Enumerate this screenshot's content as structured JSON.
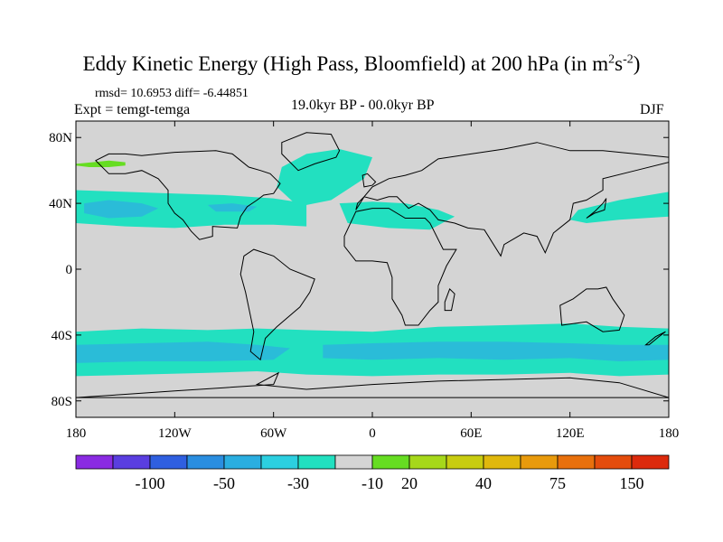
{
  "title": {
    "main": "Eddy Kinetic Energy (High Pass, Bloomfield) at 200 hPa (in m",
    "sup1": "2",
    "mid": "s",
    "sup2": "-2",
    "close": ")"
  },
  "stats": "rmsd= 10.6953 diff= -6.44851",
  "experiment": "Expt = temgt-temga",
  "period": "19.0kyr BP - 00.0kyr BP",
  "season": "DJF",
  "map": {
    "projection": "cylindrical equidistant",
    "lon_range": [
      -180,
      180
    ],
    "lat_range": [
      -90,
      90
    ],
    "background_color": "#d4d4d4",
    "lat_labels": [
      {
        "lat": 80,
        "label": "80N"
      },
      {
        "lat": 40,
        "label": "40N"
      },
      {
        "lat": 0,
        "label": "0"
      },
      {
        "lat": -40,
        "label": "40S"
      },
      {
        "lat": -80,
        "label": "80S"
      }
    ],
    "lon_labels": [
      {
        "lon": -180,
        "label": "180"
      },
      {
        "lon": -120,
        "label": "120W"
      },
      {
        "lon": -60,
        "label": "60W"
      },
      {
        "lon": 0,
        "label": "0"
      },
      {
        "lon": 60,
        "label": "60E"
      },
      {
        "lon": 120,
        "label": "120E"
      },
      {
        "lon": 180,
        "label": "180"
      }
    ],
    "anomaly_regions": [
      {
        "name": "nh-pacific-atlantic-band",
        "color": "#22e0c0",
        "lons": [
          -180,
          -150,
          -120,
          -90,
          -60,
          -40,
          -40,
          -60,
          -90,
          -120,
          -150,
          -180
        ],
        "lats": [
          48,
          47,
          46,
          45,
          43,
          40,
          26,
          27,
          27,
          25,
          26,
          28
        ]
      },
      {
        "name": "nh-pacific-core",
        "color": "#2abcd8",
        "lons": [
          -175,
          -160,
          -140,
          -130,
          -140,
          -160,
          -175
        ],
        "lats": [
          40,
          42,
          40,
          37,
          32,
          31,
          34
        ]
      },
      {
        "name": "nh-atlantic-core",
        "color": "#2abcd8",
        "lons": [
          -100,
          -85,
          -70,
          -75,
          -95
        ],
        "lats": [
          39,
          40,
          38,
          35,
          35
        ]
      },
      {
        "name": "north-atlantic-plume",
        "color": "#22e0c0",
        "lons": [
          -55,
          -40,
          -20,
          0,
          -5,
          -25,
          -45,
          -58
        ],
        "lats": [
          62,
          70,
          73,
          68,
          55,
          42,
          38,
          50
        ]
      },
      {
        "name": "africa-europe-band",
        "color": "#22e0c0",
        "lons": [
          -20,
          0,
          20,
          40,
          50,
          35,
          10,
          -15
        ],
        "lats": [
          40,
          41,
          40,
          36,
          32,
          24,
          25,
          28
        ]
      },
      {
        "name": "nw-pacific-band",
        "color": "#22e0c0",
        "lons": [
          125,
          150,
          180,
          180,
          150,
          130,
          120
        ],
        "lats": [
          36,
          42,
          47,
          32,
          30,
          28,
          30
        ]
      },
      {
        "name": "sh-ring",
        "color": "#22e0c0",
        "lons": [
          -180,
          -140,
          -100,
          -70,
          -40,
          0,
          40,
          80,
          120,
          150,
          180,
          180,
          150,
          120,
          80,
          40,
          0,
          -40,
          -70,
          -100,
          -140,
          -180
        ],
        "lats": [
          -38,
          -36,
          -37,
          -36,
          -37,
          -38,
          -35,
          -34,
          -33,
          -35,
          -36,
          -64,
          -65,
          -63,
          -64,
          -64,
          -65,
          -64,
          -62,
          -63,
          -64,
          -65
        ]
      },
      {
        "name": "sh-core-west",
        "color": "#2abcd8",
        "lons": [
          -180,
          -140,
          -100,
          -70,
          -50,
          -60,
          -100,
          -140,
          -180
        ],
        "lats": [
          -46,
          -45,
          -44,
          -46,
          -48,
          -55,
          -56,
          -56,
          -57
        ]
      },
      {
        "name": "sh-core-east",
        "color": "#2abcd8",
        "lons": [
          -30,
          0,
          40,
          80,
          120,
          150,
          180,
          180,
          150,
          120,
          80,
          40,
          0,
          -30
        ],
        "lats": [
          -46,
          -45,
          -44,
          -44,
          -45,
          -46,
          -46,
          -55,
          -56,
          -54,
          -55,
          -54,
          -55,
          -54
        ]
      },
      {
        "name": "alaska-positive",
        "color": "#66dd22",
        "lons": [
          -180,
          -170,
          -160,
          -150,
          -150,
          -160,
          -172,
          -180
        ],
        "lats": [
          64,
          65,
          66,
          65,
          63,
          62,
          62,
          63
        ]
      }
    ],
    "coastlines": [
      {
        "name": "north-america",
        "lons": [
          -168,
          -160,
          -150,
          -140,
          -130,
          -120,
          -95,
          -85,
          -80,
          -75,
          -68,
          -62,
          -56,
          -60,
          -66,
          -70,
          -76,
          -80,
          -82,
          -97,
          -97,
          -105,
          -110,
          -115,
          -120,
          -124,
          -124,
          -130,
          -140,
          -150,
          -160,
          -168
        ],
        "lats": [
          66,
          70,
          70,
          69,
          70,
          71,
          72,
          70,
          66,
          62,
          60,
          58,
          52,
          46,
          45,
          42,
          38,
          32,
          25,
          26,
          20,
          18,
          23,
          30,
          34,
          40,
          48,
          55,
          60,
          58,
          58,
          66
        ]
      },
      {
        "name": "greenland",
        "lons": [
          -55,
          -40,
          -25,
          -20,
          -22,
          -35,
          -45,
          -55
        ],
        "lats": [
          77,
          83,
          82,
          72,
          68,
          64,
          60,
          70
        ]
      },
      {
        "name": "south-america",
        "lons": [
          -78,
          -72,
          -60,
          -50,
          -35,
          -38,
          -44,
          -58,
          -65,
          -68,
          -74,
          -72,
          -77,
          -80,
          -78
        ],
        "lats": [
          8,
          12,
          8,
          0,
          -6,
          -14,
          -23,
          -35,
          -42,
          -55,
          -50,
          -38,
          -14,
          -3,
          8
        ]
      },
      {
        "name": "eurasia",
        "lons": [
          -10,
          -5,
          0,
          10,
          20,
          30,
          40,
          60,
          80,
          100,
          120,
          140,
          160,
          180,
          180,
          160,
          140,
          140,
          130,
          122,
          120,
          110,
          105,
          100,
          92,
          80,
          78,
          68,
          58,
          50,
          40,
          35,
          28,
          22,
          15,
          10,
          3,
          -5,
          -9,
          -10
        ],
        "lats": [
          36,
          44,
          50,
          55,
          57,
          60,
          67,
          70,
          73,
          77,
          72,
          72,
          70,
          68,
          65,
          60,
          55,
          48,
          42,
          40,
          30,
          22,
          10,
          20,
          22,
          15,
          8,
          24,
          25,
          28,
          30,
          36,
          40,
          37,
          44,
          44,
          42,
          44,
          40,
          36
        ]
      },
      {
        "name": "africa",
        "lons": [
          -17,
          -10,
          0,
          10,
          20,
          32,
          35,
          43,
          51,
          45,
          40,
          40,
          35,
          28,
          20,
          18,
          12,
          12,
          9,
          0,
          -10,
          -17
        ],
        "lats": [
          20,
          35,
          37,
          37,
          31,
          31,
          28,
          12,
          12,
          2,
          -10,
          -20,
          -25,
          -34,
          -34,
          -28,
          -18,
          -5,
          4,
          5,
          5,
          14
        ]
      },
      {
        "name": "australia",
        "lons": [
          114,
          122,
          130,
          137,
          142,
          146,
          153,
          150,
          140,
          130,
          115,
          114
        ],
        "lats": [
          -22,
          -18,
          -12,
          -12,
          -11,
          -18,
          -28,
          -37,
          -38,
          -32,
          -34,
          -22
        ]
      },
      {
        "name": "antarctica",
        "lons": [
          -180,
          -150,
          -120,
          -90,
          -60,
          -57,
          -70,
          -40,
          0,
          40,
          80,
          120,
          150,
          180
        ],
        "lats": [
          -78,
          -76,
          -74,
          -72,
          -70,
          -63,
          -70,
          -73,
          -70,
          -68,
          -67,
          -66,
          -69,
          -78
        ]
      },
      {
        "name": "uk",
        "lons": [
          -5,
          0,
          2,
          -3,
          -6,
          -5
        ],
        "lats": [
          50,
          51,
          53,
          58,
          57,
          50
        ]
      },
      {
        "name": "japan",
        "lons": [
          130,
          135,
          141,
          142,
          140,
          135,
          130
        ],
        "lats": [
          31,
          34,
          36,
          43,
          40,
          35,
          31
        ]
      },
      {
        "name": "new-zealand",
        "lons": [
          166,
          172,
          178,
          174,
          168,
          166
        ],
        "lats": [
          -46,
          -41,
          -38,
          -41,
          -46,
          -46
        ]
      },
      {
        "name": "madagascar",
        "lons": [
          44,
          48,
          50,
          47,
          44
        ],
        "lats": [
          -25,
          -25,
          -15,
          -12,
          -20
        ]
      }
    ]
  },
  "colorbar": {
    "colors": [
      "#8a2be2",
      "#5a3ee0",
      "#2f5fe0",
      "#2a8ee0",
      "#2aaee0",
      "#2ccfe0",
      "#22e0c0",
      "#d4d4d4",
      "#66dd22",
      "#a6d81a",
      "#c8cc10",
      "#e0b80c",
      "#e89a0c",
      "#e8700c",
      "#e44c0c",
      "#dc2a0c"
    ],
    "labels": [
      {
        "after_box": 2,
        "text": "-100"
      },
      {
        "after_box": 4,
        "text": "-50"
      },
      {
        "after_box": 6,
        "text": "-30"
      },
      {
        "after_box": 8,
        "text": "-10"
      },
      {
        "after_box": 9,
        "text": "20"
      },
      {
        "after_box": 11,
        "text": "40"
      },
      {
        "after_box": 13,
        "text": "75"
      },
      {
        "after_box": 15,
        "text": "150"
      }
    ]
  }
}
